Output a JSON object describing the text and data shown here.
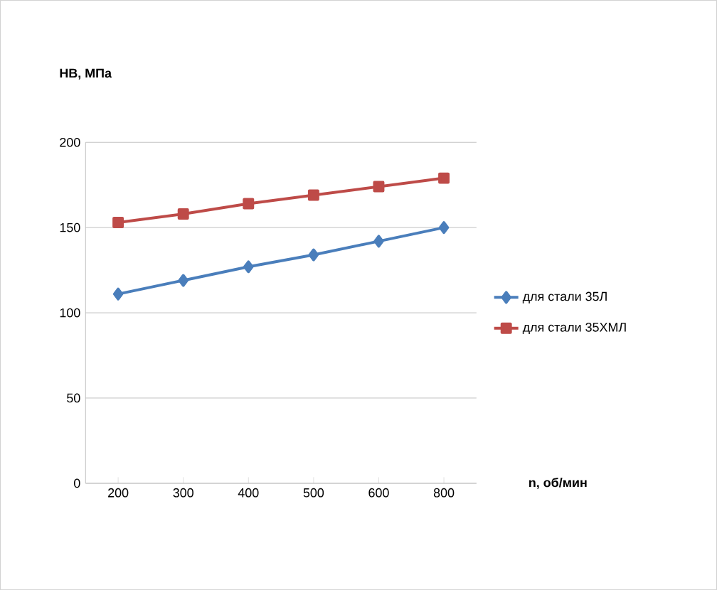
{
  "chart_data": {
    "type": "line",
    "xlabel": "n, об/мин",
    "ylabel": "HB, МПа",
    "categories": [
      "200",
      "300",
      "400",
      "500",
      "600",
      "800"
    ],
    "series": [
      {
        "name": "для стали 35Л",
        "color": "#4a7ebb",
        "marker": "diamond",
        "values": [
          111,
          119,
          127,
          134,
          142,
          150
        ]
      },
      {
        "name": "для стали 35ХМЛ",
        "color": "#be4b48",
        "marker": "square",
        "values": [
          153,
          158,
          164,
          169,
          174,
          179
        ]
      }
    ],
    "ylim": [
      0,
      200
    ],
    "yticks": [
      0,
      50,
      100,
      150,
      200
    ],
    "grid": "y",
    "legend": "right"
  }
}
